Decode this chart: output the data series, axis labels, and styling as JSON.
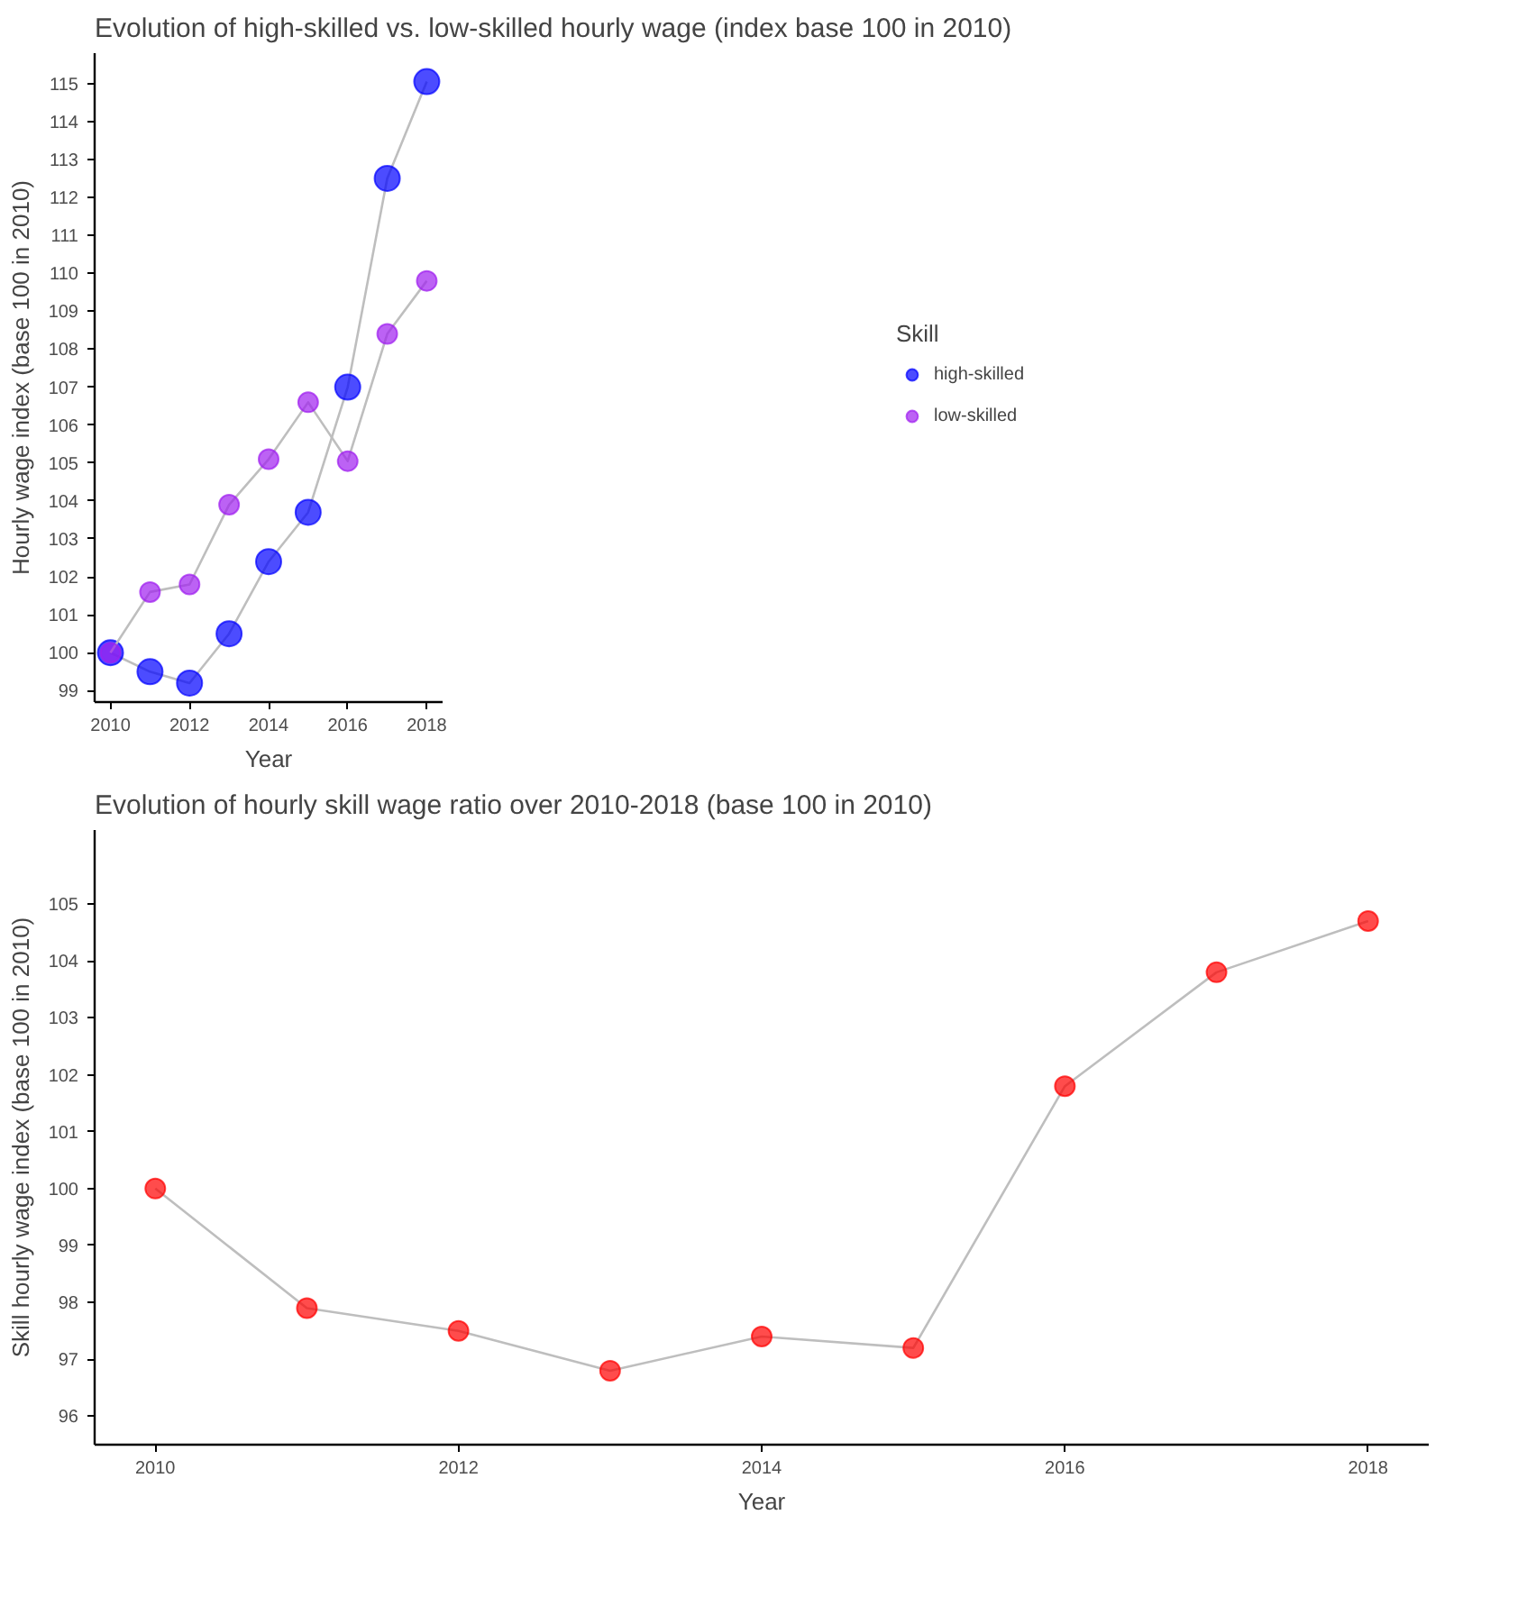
{
  "chart_data": [
    {
      "type": "line",
      "title": "Evolution of high-skilled vs. low-skilled hourly wage (index base 100 in 2010)",
      "xlabel": "Year",
      "ylabel": "Hourly wage index (base 100 in 2010)",
      "legend_title": "Skill",
      "legend": "right",
      "marker": "circle",
      "grid": false,
      "x": [
        2010,
        2011,
        2012,
        2013,
        2014,
        2015,
        2016,
        2017,
        2018
      ],
      "xlim": [
        2009.6,
        2018.4
      ],
      "xticks": [
        2010,
        2012,
        2014,
        2016,
        2018
      ],
      "ylim": [
        98.7,
        115.8
      ],
      "yticks": [
        99,
        100,
        101,
        102,
        103,
        104,
        105,
        106,
        107,
        108,
        109,
        110,
        111,
        112,
        113,
        114,
        115
      ],
      "series": [
        {
          "name": "high-skilled",
          "color": "#0000ff",
          "values": [
            100,
            99.5,
            99.2,
            100.5,
            102.4,
            103.7,
            107.0,
            112.5,
            115.05
          ]
        },
        {
          "name": "low-skilled",
          "color": "#a020f0",
          "values": [
            100,
            101.6,
            101.8,
            103.9,
            105.1,
            106.6,
            105.05,
            108.4,
            109.8
          ]
        }
      ]
    },
    {
      "type": "line",
      "title": "Evolution of hourly skill wage ratio over 2010-2018 (base 100 in 2010)",
      "xlabel": "Year",
      "ylabel": "Skill hourly wage index (base 100 in 2010)",
      "marker": "circle",
      "grid": false,
      "x": [
        2010,
        2011,
        2012,
        2013,
        2014,
        2015,
        2016,
        2017,
        2018
      ],
      "xlim": [
        2009.6,
        2018.4
      ],
      "xticks": [
        2010,
        2012,
        2014,
        2016,
        2018
      ],
      "ylim": [
        95.5,
        106.3
      ],
      "yticks": [
        96,
        97,
        98,
        99,
        100,
        101,
        102,
        103,
        104,
        105
      ],
      "series": [
        {
          "color": "#ff0000",
          "values": [
            100,
            97.9,
            97.5,
            96.8,
            97.4,
            97.2,
            101.8,
            103.8,
            104.7
          ]
        }
      ]
    }
  ]
}
